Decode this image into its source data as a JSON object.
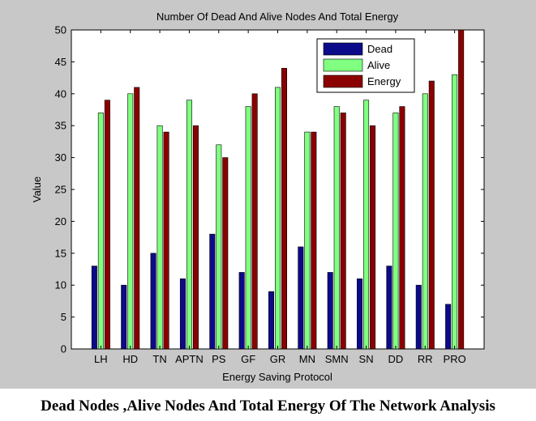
{
  "caption": "Dead Nodes ,Alive Nodes And Total Energy Of The Network Analysis",
  "chart_data": {
    "type": "bar",
    "title": "Number Of Dead And Alive Nodes And Total Energy",
    "xlabel": "Energy Saving Protocol",
    "ylabel": "Value",
    "ylim": [
      0,
      50
    ],
    "yticks": [
      0,
      5,
      10,
      15,
      20,
      25,
      30,
      35,
      40,
      45,
      50
    ],
    "grid": false,
    "legend_position": "top-right",
    "categories": [
      "LH",
      "HD",
      "TN",
      "APTN",
      "PS",
      "GF",
      "GR",
      "MN",
      "SMN",
      "SN",
      "DD",
      "RR",
      "PRO"
    ],
    "series": [
      {
        "name": "Dead",
        "color": "#0b0b8a",
        "values": [
          13,
          10,
          15,
          11,
          18,
          12,
          9,
          16,
          12,
          11,
          13,
          10,
          7
        ]
      },
      {
        "name": "Alive",
        "color": "#80ff80",
        "values": [
          37,
          40,
          35,
          39,
          32,
          38,
          41,
          34,
          38,
          39,
          37,
          40,
          43
        ]
      },
      {
        "name": "Energy",
        "color": "#8b0000",
        "values": [
          39,
          41,
          34,
          35,
          30,
          40,
          44,
          34,
          37,
          35,
          38,
          42,
          50
        ]
      }
    ]
  }
}
